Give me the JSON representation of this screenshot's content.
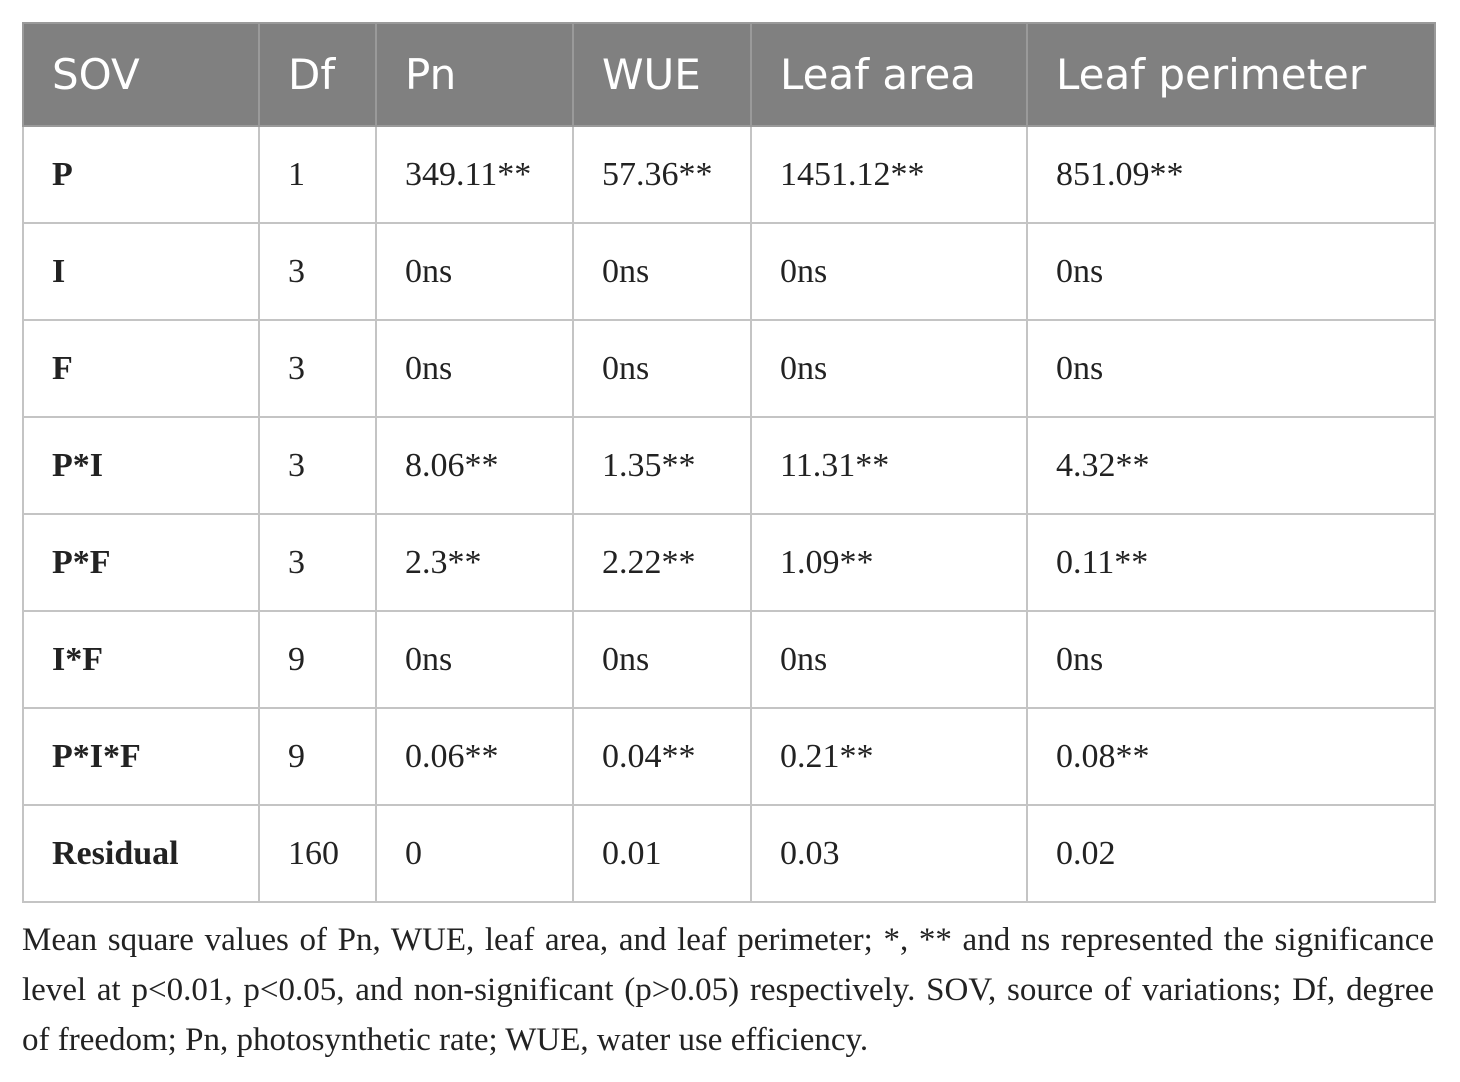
{
  "table": {
    "header": [
      "SOV",
      "Df",
      "Pn",
      "WUE",
      "Leaf area",
      "Leaf perimeter"
    ],
    "rows": [
      [
        "P",
        "1",
        "349.11**",
        "57.36**",
        "1451.12**",
        "851.09**"
      ],
      [
        "I",
        "3",
        "0ns",
        "0ns",
        "0ns",
        "0ns"
      ],
      [
        "F",
        "3",
        "0ns",
        "0ns",
        "0ns",
        "0ns"
      ],
      [
        "P*I",
        "3",
        "8.06**",
        "1.35**",
        "11.31**",
        "4.32**"
      ],
      [
        "P*F",
        "3",
        "2.3**",
        "2.22**",
        "1.09**",
        "0.11**"
      ],
      [
        "I*F",
        "9",
        "0ns",
        "0ns",
        "0ns",
        "0ns"
      ],
      [
        "P*I*F",
        "9",
        "0.06**",
        "0.04**",
        "0.21**",
        "0.08**"
      ],
      [
        "Residual",
        "160",
        "0",
        "0.01",
        "0.03",
        "0.02"
      ]
    ]
  },
  "caption": "Mean square values of Pn, WUE, leaf area, and leaf perimeter; *, ** and ns represented the significance level at p<0.01, p<0.05, and non-significant (p>0.05) respectively. SOV, source of variations; Df, degree of freedom; Pn, photosynthetic rate; WUE, water use efficiency."
}
